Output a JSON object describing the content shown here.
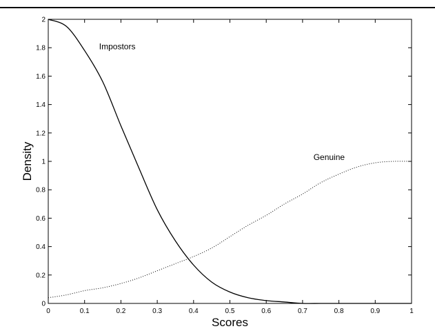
{
  "chart_data": {
    "type": "line",
    "title": "",
    "xlabel": "Scores",
    "ylabel": "Density",
    "xlim": [
      0,
      1
    ],
    "ylim": [
      0,
      2
    ],
    "grid": false,
    "x_ticks": [
      "0",
      "0.1",
      "0.2",
      "0.3",
      "0.4",
      "0.5",
      "0.6",
      "0.7",
      "0.8",
      "0.9",
      "1"
    ],
    "y_ticks": [
      "0",
      "0.2",
      "0.4",
      "0.6",
      "0.8",
      "1",
      "1.2",
      "1.4",
      "1.6",
      "1.8",
      "2"
    ],
    "series": [
      {
        "name": "Impostors",
        "line_style": "solid",
        "color": "#000000",
        "x": [
          0,
          0.05,
          0.1,
          0.15,
          0.2,
          0.25,
          0.3,
          0.35,
          0.4,
          0.45,
          0.5,
          0.55,
          0.6,
          0.65,
          0.7,
          0.75,
          0.8,
          0.85,
          0.9,
          0.95,
          1
        ],
        "y": [
          2.0,
          1.95,
          1.78,
          1.56,
          1.25,
          0.95,
          0.66,
          0.44,
          0.27,
          0.15,
          0.08,
          0.04,
          0.02,
          0.01,
          0.0,
          0.0,
          0.0,
          0.0,
          0.0,
          0.0,
          0.0
        ]
      },
      {
        "name": "Genuine",
        "line_style": "dotted",
        "color": "#000000",
        "x": [
          0,
          0.05,
          0.1,
          0.15,
          0.2,
          0.25,
          0.3,
          0.35,
          0.4,
          0.45,
          0.5,
          0.55,
          0.6,
          0.65,
          0.7,
          0.75,
          0.8,
          0.85,
          0.9,
          0.95,
          1
        ],
        "y": [
          0.04,
          0.06,
          0.09,
          0.11,
          0.14,
          0.18,
          0.23,
          0.28,
          0.33,
          0.39,
          0.47,
          0.55,
          0.62,
          0.7,
          0.77,
          0.85,
          0.91,
          0.96,
          0.99,
          1.0,
          1.0
        ]
      }
    ],
    "annotations": [
      {
        "text": "Impostors",
        "x": 0.14,
        "y": 1.79
      },
      {
        "text": "Genuine",
        "x": 0.73,
        "y": 1.01
      }
    ]
  }
}
